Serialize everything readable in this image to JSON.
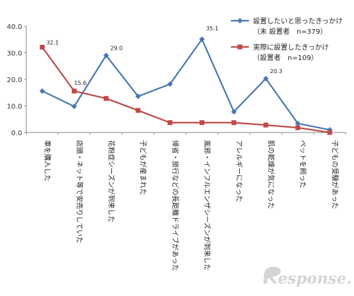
{
  "chart_data": {
    "type": "line",
    "categories": [
      "車を購入した",
      "店頭・ネット等で安売りしていた",
      "花粉症シーズンが到来した",
      "子どもが産まれた",
      "帰省・旅行などの長距離ドライブがあった",
      "風邪・インフルエンザシーズンが到来した",
      "アレルギーになった",
      "肌の乾燥が気になった",
      "ペットを飼った",
      "子どもの受験があった"
    ],
    "series": [
      {
        "name": "設置したいと思ったきっかけ",
        "name_sub": "（未 設置者　n=379）",
        "color": "#4a78ae",
        "marker": "diamond",
        "values": [
          15.6,
          9.8,
          29.0,
          13.6,
          18.2,
          35.1,
          7.8,
          20.3,
          3.4,
          1.0
        ],
        "labels": [
          "",
          "",
          "29.0",
          "",
          "",
          "35.1",
          "",
          "20.3",
          "",
          ""
        ]
      },
      {
        "name": "実際に設置したきっかけ",
        "name_sub": "（設置者　n=109）",
        "color": "#be4b48",
        "marker": "square",
        "values": [
          32.1,
          15.6,
          12.8,
          8.3,
          3.7,
          3.7,
          3.7,
          2.8,
          1.8,
          0.0
        ],
        "labels": [
          "32.1",
          "15.6",
          "",
          "",
          "",
          "",
          "",
          "",
          "",
          ""
        ]
      }
    ],
    "yticks": [
      "40.0",
      "30.0",
      "20.0",
      "10.0",
      "0.0"
    ],
    "ylim": [
      0,
      40
    ],
    "grid": false,
    "legend_position": "top-right"
  },
  "watermark": {
    "text": "esponse.",
    "logo": "R"
  }
}
